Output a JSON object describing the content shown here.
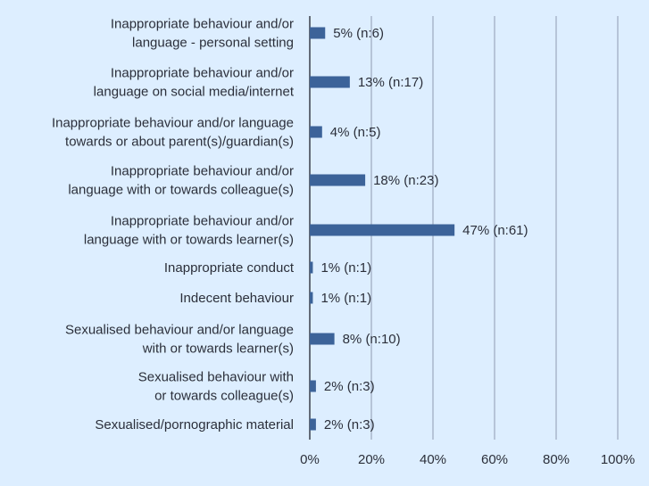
{
  "chart_data": {
    "type": "bar",
    "orientation": "horizontal",
    "categories": [
      [
        "Inappropriate behaviour and/or",
        "language - personal setting"
      ],
      [
        "Inappropriate behaviour and/or",
        "language on social media/internet"
      ],
      [
        "Inappropriate behaviour and/or language",
        "towards or about parent(s)/guardian(s)"
      ],
      [
        "Inappropriate behaviour and/or",
        "language with or towards colleague(s)"
      ],
      [
        "Inappropriate behaviour and/or",
        "language with or towards learner(s)"
      ],
      [
        "Inappropriate conduct"
      ],
      [
        "Indecent behaviour"
      ],
      [
        "Sexualised behaviour and/or language",
        "with or towards learner(s)"
      ],
      [
        "Sexualised behaviour with",
        "or towards colleague(s)"
      ],
      [
        "Sexualised/pornographic material"
      ]
    ],
    "values": [
      5,
      13,
      4,
      18,
      47,
      1,
      1,
      8,
      2,
      2
    ],
    "data_labels": [
      "5% (n:6)",
      "13% (n:17)",
      "4% (n:5)",
      "18% (n:23)",
      "47% (n:61)",
      "1% (n:1)",
      "1% (n:1)",
      "8% (n:10)",
      "2% (n:3)",
      "2% (n:3)"
    ],
    "xlim": [
      0,
      100
    ],
    "x_ticks": [
      0,
      20,
      40,
      60,
      80,
      100
    ],
    "x_tick_labels": [
      "0%",
      "20%",
      "40%",
      "60%",
      "80%",
      "100%"
    ],
    "title": "",
    "xlabel": "",
    "ylabel": "",
    "grid": true,
    "bar_color": "#3c6399",
    "background_color": "#ddeeff"
  }
}
